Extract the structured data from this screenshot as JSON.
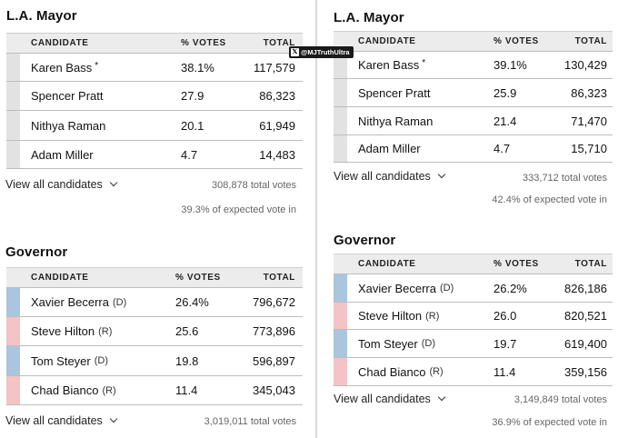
{
  "left": {
    "mayor": {
      "title": "L.A. Mayor",
      "headers": {
        "candidate": "CANDIDATE",
        "pct": "% VOTES",
        "total": "TOTAL"
      },
      "rows": [
        {
          "name": "Karen Bass",
          "star": "*",
          "pct": "38.1%",
          "total": "117,579"
        },
        {
          "name": "Spencer Pratt",
          "pct": "27.9",
          "total": "86,323"
        },
        {
          "name": "Nithya Raman",
          "pct": "20.1",
          "total": "61,949"
        },
        {
          "name": "Adam Miller",
          "pct": "4.7",
          "total": "14,483"
        }
      ],
      "view_all": "View all candidates",
      "total_votes": "308,878 total votes",
      "expected": "39.3% of expected vote in"
    },
    "governor": {
      "title": "Governor",
      "headers": {
        "candidate": "CANDIDATE",
        "pct": "% VOTES",
        "total": "TOTAL"
      },
      "rows": [
        {
          "name": "Xavier Becerra",
          "party": "(D)",
          "pct": "26.4%",
          "total": "796,672"
        },
        {
          "name": "Steve Hilton",
          "party": "(R)",
          "pct": "25.6",
          "total": "773,896"
        },
        {
          "name": "Tom Steyer",
          "party": "(D)",
          "pct": "19.8",
          "total": "596,897"
        },
        {
          "name": "Chad Bianco",
          "party": "(R)",
          "pct": "11.4",
          "total": "345,043"
        }
      ],
      "view_all": "View all candidates",
      "total_votes": "3,019,011 total votes"
    }
  },
  "right": {
    "mayor": {
      "title": "L.A. Mayor",
      "headers": {
        "candidate": "CANDIDATE",
        "pct": "% VOTES",
        "total": "TOTAL"
      },
      "rows": [
        {
          "name": "Karen Bass",
          "star": "*",
          "pct": "39.1%",
          "total": "130,429"
        },
        {
          "name": "Spencer Pratt",
          "pct": "25.9",
          "total": "86,323"
        },
        {
          "name": "Nithya Raman",
          "pct": "21.4",
          "total": "71,470"
        },
        {
          "name": "Adam Miller",
          "pct": "4.7",
          "total": "15,710"
        }
      ],
      "view_all": "View all candidates",
      "total_votes": "333,712 total votes",
      "expected": "42.4% of expected vote in"
    },
    "governor": {
      "title": "Governor",
      "headers": {
        "candidate": "CANDIDATE",
        "pct": "% VOTES",
        "total": "TOTAL"
      },
      "rows": [
        {
          "name": "Xavier Becerra",
          "party": "(D)",
          "pct": "26.2%",
          "total": "826,186"
        },
        {
          "name": "Steve Hilton",
          "party": "(R)",
          "pct": "26.0",
          "total": "820,521"
        },
        {
          "name": "Tom Steyer",
          "party": "(D)",
          "pct": "19.7",
          "total": "619,400"
        },
        {
          "name": "Chad Bianco",
          "party": "(R)",
          "pct": "11.4",
          "total": "359,156"
        }
      ],
      "view_all": "View all candidates",
      "total_votes": "3,149,849 total votes",
      "expected": "36.9% of expected vote in"
    }
  },
  "watermark": {
    "icon": "x-logo-icon",
    "text": "@MJTruthUltra"
  },
  "colors": {
    "dem": "#a9c6de",
    "rep": "#f3c3c6",
    "incumbent": "#e2e2e2"
  }
}
